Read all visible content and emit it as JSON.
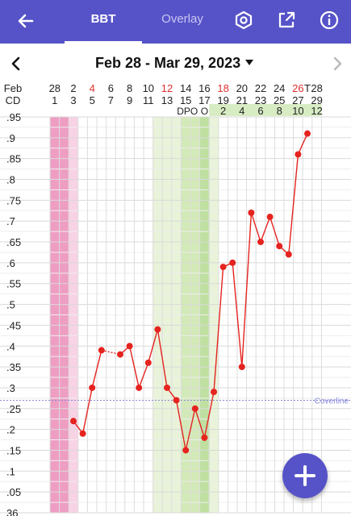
{
  "appbar": {
    "tab_bbt": "BBT",
    "tab_overlay": "Overlay",
    "icons": [
      "back-arrow-icon",
      "settings-hexagon-icon",
      "share-icon",
      "info-icon"
    ],
    "color": "#5653c8"
  },
  "nav": {
    "date_range": "Feb 28 - Mar 29, 2023"
  },
  "chart_data": {
    "type": "line",
    "row_labels": {
      "month": "Feb",
      "cycle_day": "CD"
    },
    "x": [
      1,
      2,
      3,
      4,
      5,
      6,
      7,
      8,
      9,
      10,
      11,
      12,
      13,
      14,
      15,
      16,
      17,
      18,
      19,
      20,
      21,
      22,
      23,
      24,
      25,
      26,
      27,
      28,
      29
    ],
    "date_labels": [
      "28",
      "",
      "2",
      "",
      "4",
      "",
      "6",
      "",
      "8",
      "",
      "10",
      "",
      "12",
      "",
      "14",
      "",
      "16",
      "",
      "18",
      "",
      "20",
      "",
      "22",
      "",
      "24",
      "",
      "26",
      "T",
      "28"
    ],
    "date_label_colors": [
      "#222",
      "#222",
      "#222",
      "#222",
      "#e03030",
      "#222",
      "#222",
      "#222",
      "#222",
      "#222",
      "#222",
      "#222",
      "#e03030",
      "#222",
      "#222",
      "#222",
      "#222",
      "#222",
      "#e03030",
      "#222",
      "#222",
      "#222",
      "#222",
      "#222",
      "#222",
      "#222",
      "#e03030",
      "#222",
      "#222"
    ],
    "cd_labels": [
      "1",
      "",
      "3",
      "",
      "5",
      "",
      "7",
      "",
      "9",
      "",
      "11",
      "",
      "13",
      "",
      "15",
      "",
      "17",
      "",
      "19",
      "",
      "21",
      "",
      "23",
      "",
      "25",
      "",
      "27",
      "",
      "29"
    ],
    "marker_labels": {
      "dpo": "DPO",
      "ovulation": "O"
    },
    "dpo_labels": [
      "2",
      "4",
      "6",
      "8",
      "10",
      "12"
    ],
    "points": [
      {
        "cd": 3,
        "temp": 36.22
      },
      {
        "cd": 4,
        "temp": 36.19
      },
      {
        "cd": 5,
        "temp": 36.3
      },
      {
        "cd": 6,
        "temp": 36.39
      },
      {
        "cd": 8,
        "temp": 36.38
      },
      {
        "cd": 9,
        "temp": 36.4
      },
      {
        "cd": 10,
        "temp": 36.3
      },
      {
        "cd": 11,
        "temp": 36.36
      },
      {
        "cd": 12,
        "temp": 36.44
      },
      {
        "cd": 13,
        "temp": 36.3
      },
      {
        "cd": 14,
        "temp": 36.27
      },
      {
        "cd": 15,
        "temp": 36.15
      },
      {
        "cd": 16,
        "temp": 36.25
      },
      {
        "cd": 17,
        "temp": 36.18
      },
      {
        "cd": 18,
        "temp": 36.29
      },
      {
        "cd": 19,
        "temp": 36.59
      },
      {
        "cd": 20,
        "temp": 36.6
      },
      {
        "cd": 21,
        "temp": 36.35
      },
      {
        "cd": 22,
        "temp": 36.72
      },
      {
        "cd": 23,
        "temp": 36.65
      },
      {
        "cd": 24,
        "temp": 36.71
      },
      {
        "cd": 25,
        "temp": 36.64
      },
      {
        "cd": 26,
        "temp": 36.62
      },
      {
        "cd": 27,
        "temp": 36.86
      },
      {
        "cd": 28,
        "temp": 36.91
      }
    ],
    "dashed_segment": [
      4,
      6
    ],
    "y_ticks": [
      ".95",
      ".9",
      ".85",
      ".8",
      ".75",
      ".7",
      ".65",
      ".6",
      ".55",
      ".5",
      ".45",
      ".4",
      ".35",
      ".3",
      ".25",
      ".2",
      ".15",
      ".1",
      ".05",
      "36"
    ],
    "ylim": [
      36.0,
      36.95
    ],
    "coverline": {
      "label": "Coverline",
      "temp": 36.27
    },
    "period_days": [
      1,
      2,
      3
    ],
    "period_colors": [
      "#ee9ec3",
      "#ee9ec3",
      "#f8d3e5"
    ],
    "fertile_window": [
      12,
      18
    ],
    "fertile_peak": [
      15,
      16
    ],
    "ovulation_day": 17,
    "series_color": "#e5231f",
    "coverline_color": "#8888dd"
  },
  "fab": {
    "icon": "plus-icon"
  }
}
